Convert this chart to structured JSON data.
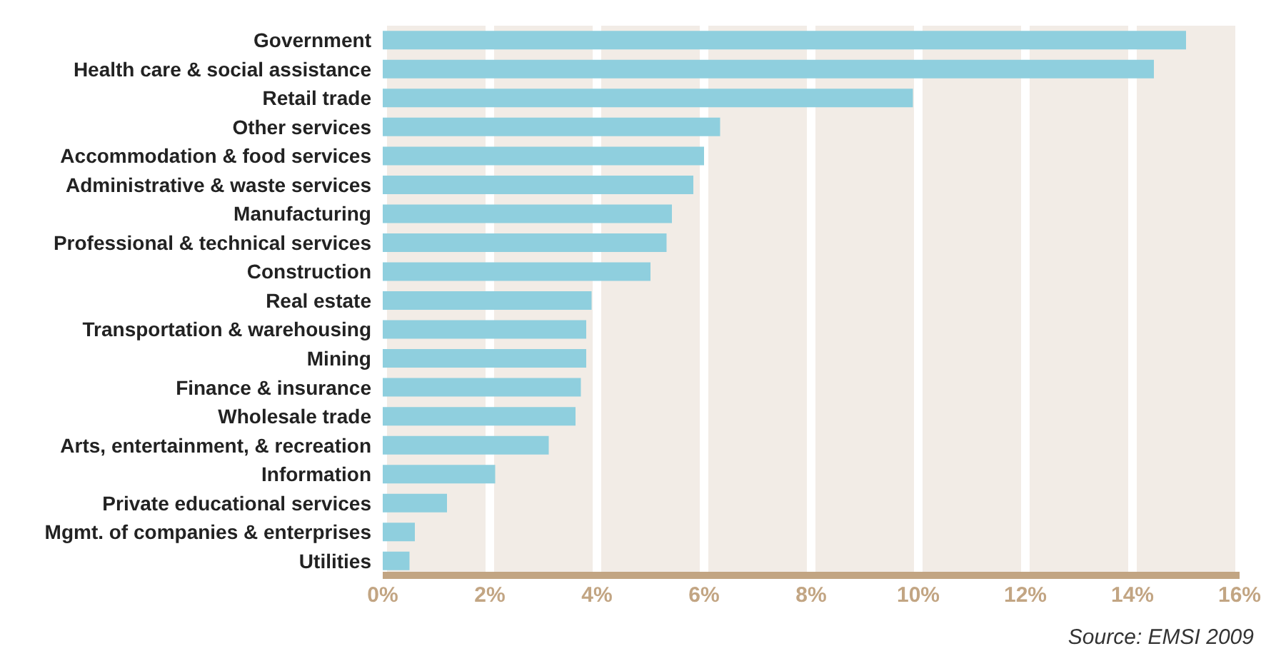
{
  "chart_data": {
    "type": "bar",
    "orientation": "horizontal",
    "categories": [
      "Government",
      "Health care & social assistance",
      "Retail trade",
      "Other services",
      "Accommodation & food services",
      "Administrative & waste services",
      "Manufacturing",
      "Professional & technical services",
      "Construction",
      "Real estate",
      "Transportation & warehousing",
      "Mining",
      "Finance & insurance",
      "Wholesale trade",
      "Arts, entertainment, & recreation",
      "Information",
      "Private educational services",
      "Mgmt. of companies & enterprises",
      "Utilities"
    ],
    "values": [
      15.0,
      14.4,
      9.9,
      6.3,
      6.0,
      5.8,
      5.4,
      5.3,
      5.0,
      3.9,
      3.8,
      3.8,
      3.7,
      3.6,
      3.1,
      2.1,
      1.2,
      0.6,
      0.5
    ],
    "color": "#8fcfde",
    "xlim": [
      0,
      16
    ],
    "xticks": [
      {
        "value": 0,
        "label": "0%"
      },
      {
        "value": 2,
        "label": "2%"
      },
      {
        "value": 4,
        "label": "4%"
      },
      {
        "value": 6,
        "label": "6%"
      },
      {
        "value": 8,
        "label": "8%"
      },
      {
        "value": 10,
        "label": "10%"
      },
      {
        "value": 12,
        "label": "12%"
      },
      {
        "value": 14,
        "label": "14%"
      },
      {
        "value": 16,
        "label": "16%"
      }
    ],
    "grid": "x",
    "annotations": [
      "Source: EMSI 2009"
    ]
  }
}
